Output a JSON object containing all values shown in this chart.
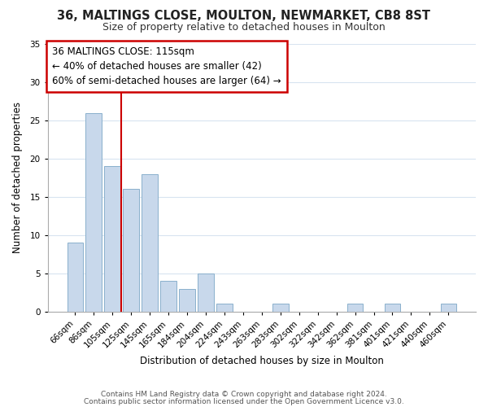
{
  "title1": "36, MALTINGS CLOSE, MOULTON, NEWMARKET, CB8 8ST",
  "title2": "Size of property relative to detached houses in Moulton",
  "xlabel": "Distribution of detached houses by size in Moulton",
  "ylabel": "Number of detached properties",
  "bar_labels": [
    "66sqm",
    "86sqm",
    "105sqm",
    "125sqm",
    "145sqm",
    "165sqm",
    "184sqm",
    "204sqm",
    "224sqm",
    "243sqm",
    "263sqm",
    "283sqm",
    "302sqm",
    "322sqm",
    "342sqm",
    "362sqm",
    "381sqm",
    "401sqm",
    "421sqm",
    "440sqm",
    "460sqm"
  ],
  "bar_values": [
    9,
    26,
    19,
    16,
    18,
    4,
    3,
    5,
    1,
    0,
    0,
    1,
    0,
    0,
    0,
    1,
    0,
    1,
    0,
    0,
    1
  ],
  "bar_color": "#c8d8eb",
  "bar_edge_color": "#8ab0cc",
  "reference_line_x": 2.45,
  "reference_line_color": "#cc0000",
  "ylim": [
    0,
    35
  ],
  "yticks": [
    0,
    5,
    10,
    15,
    20,
    25,
    30,
    35
  ],
  "annotation_title": "36 MALTINGS CLOSE: 115sqm",
  "annotation_line1": "← 40% of detached houses are smaller (42)",
  "annotation_line2": "60% of semi-detached houses are larger (64) →",
  "annotation_box_facecolor": "#ffffff",
  "annotation_box_edgecolor": "#cc0000",
  "footer1": "Contains HM Land Registry data © Crown copyright and database right 2024.",
  "footer2": "Contains public sector information licensed under the Open Government Licence v3.0.",
  "background_color": "#ffffff",
  "grid_color": "#d8e4f0",
  "title1_fontsize": 10.5,
  "title2_fontsize": 9,
  "axis_label_fontsize": 8.5,
  "tick_fontsize": 7.5,
  "annotation_fontsize": 8.5,
  "footer_fontsize": 6.5
}
